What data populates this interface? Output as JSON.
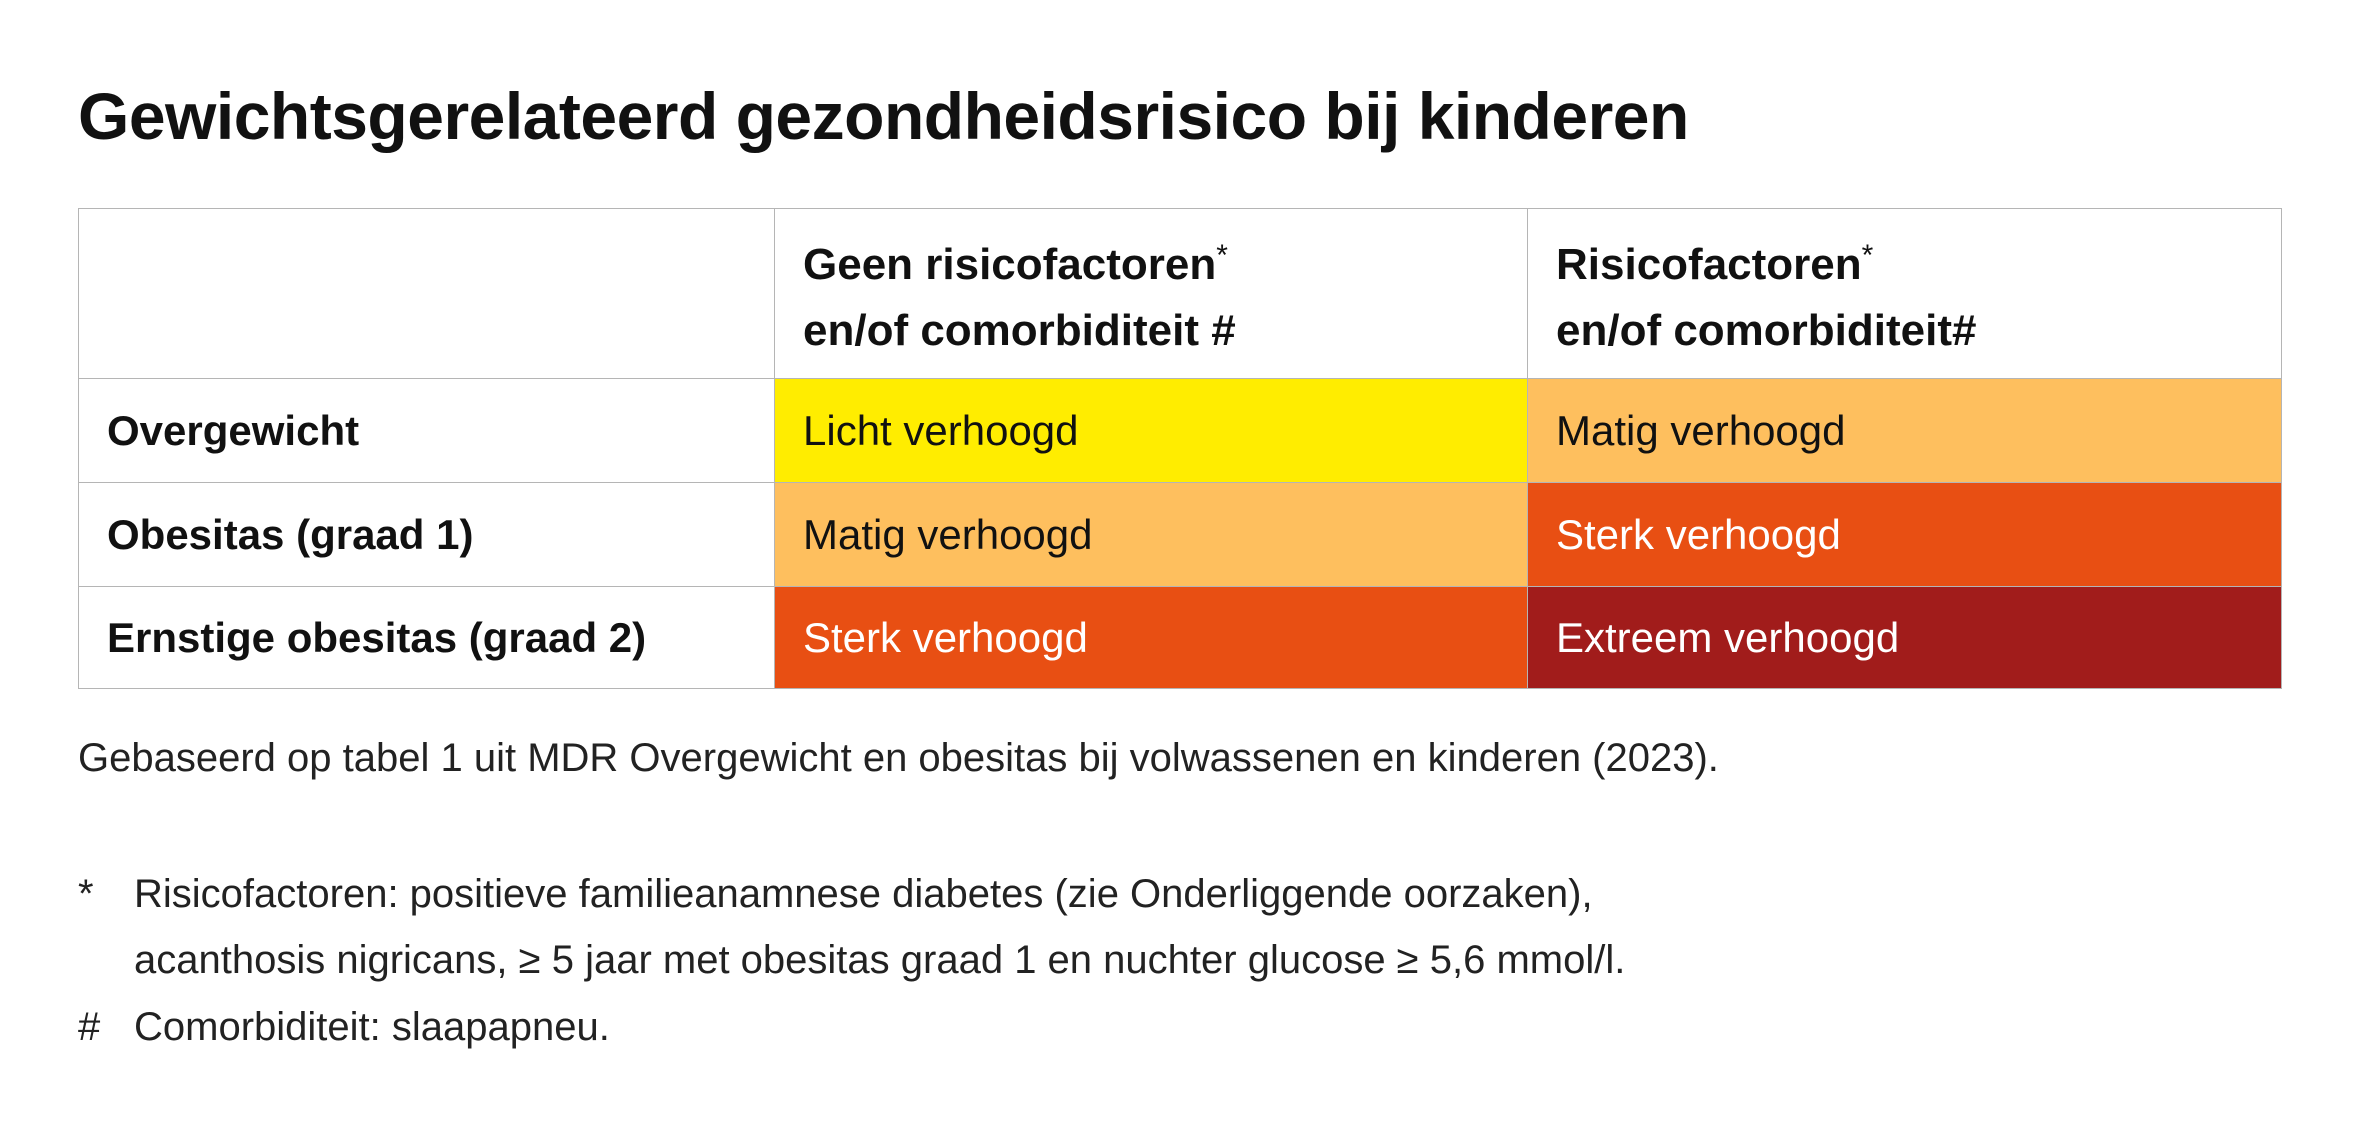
{
  "title": "Gewichtsgerelateerd gezondheidsrisico bij kinderen",
  "table": {
    "header": [
      {
        "line1": "Geen risicofactoren",
        "mark": "*",
        "line2": "en/of comorbiditeit #"
      },
      {
        "line1": "Risicofactoren",
        "mark": "*",
        "line2": "en/of comorbiditeit#"
      }
    ],
    "rows": [
      {
        "label": "Overgewicht",
        "cells": [
          "Licht verhoogd",
          "Matig verhoogd"
        ]
      },
      {
        "label": "Obesitas (graad 1)",
        "cells": [
          "Matig verhoogd",
          "Sterk verhoogd"
        ]
      },
      {
        "label": "Ernstige obesitas (graad 2)",
        "cells": [
          "Sterk verhoogd",
          "Extreem verhoogd"
        ]
      }
    ]
  },
  "source": "Gebaseerd op tabel 1 uit MDR Overgewicht en obesitas bij volwassenen en kinderen (2023).",
  "footnotes": [
    {
      "marker": "*",
      "lines": [
        "Risicofactoren: positieve familieanamnese diabetes (zie Onderliggende oorzaken),",
        "acanthosis nigricans, ≥ 5 jaar met obesitas graad 1 en nuchter glucose ≥ 5,6 mmol/l."
      ]
    },
    {
      "marker": "#",
      "lines": [
        "Comorbiditeit: slaapapneu."
      ]
    }
  ]
}
